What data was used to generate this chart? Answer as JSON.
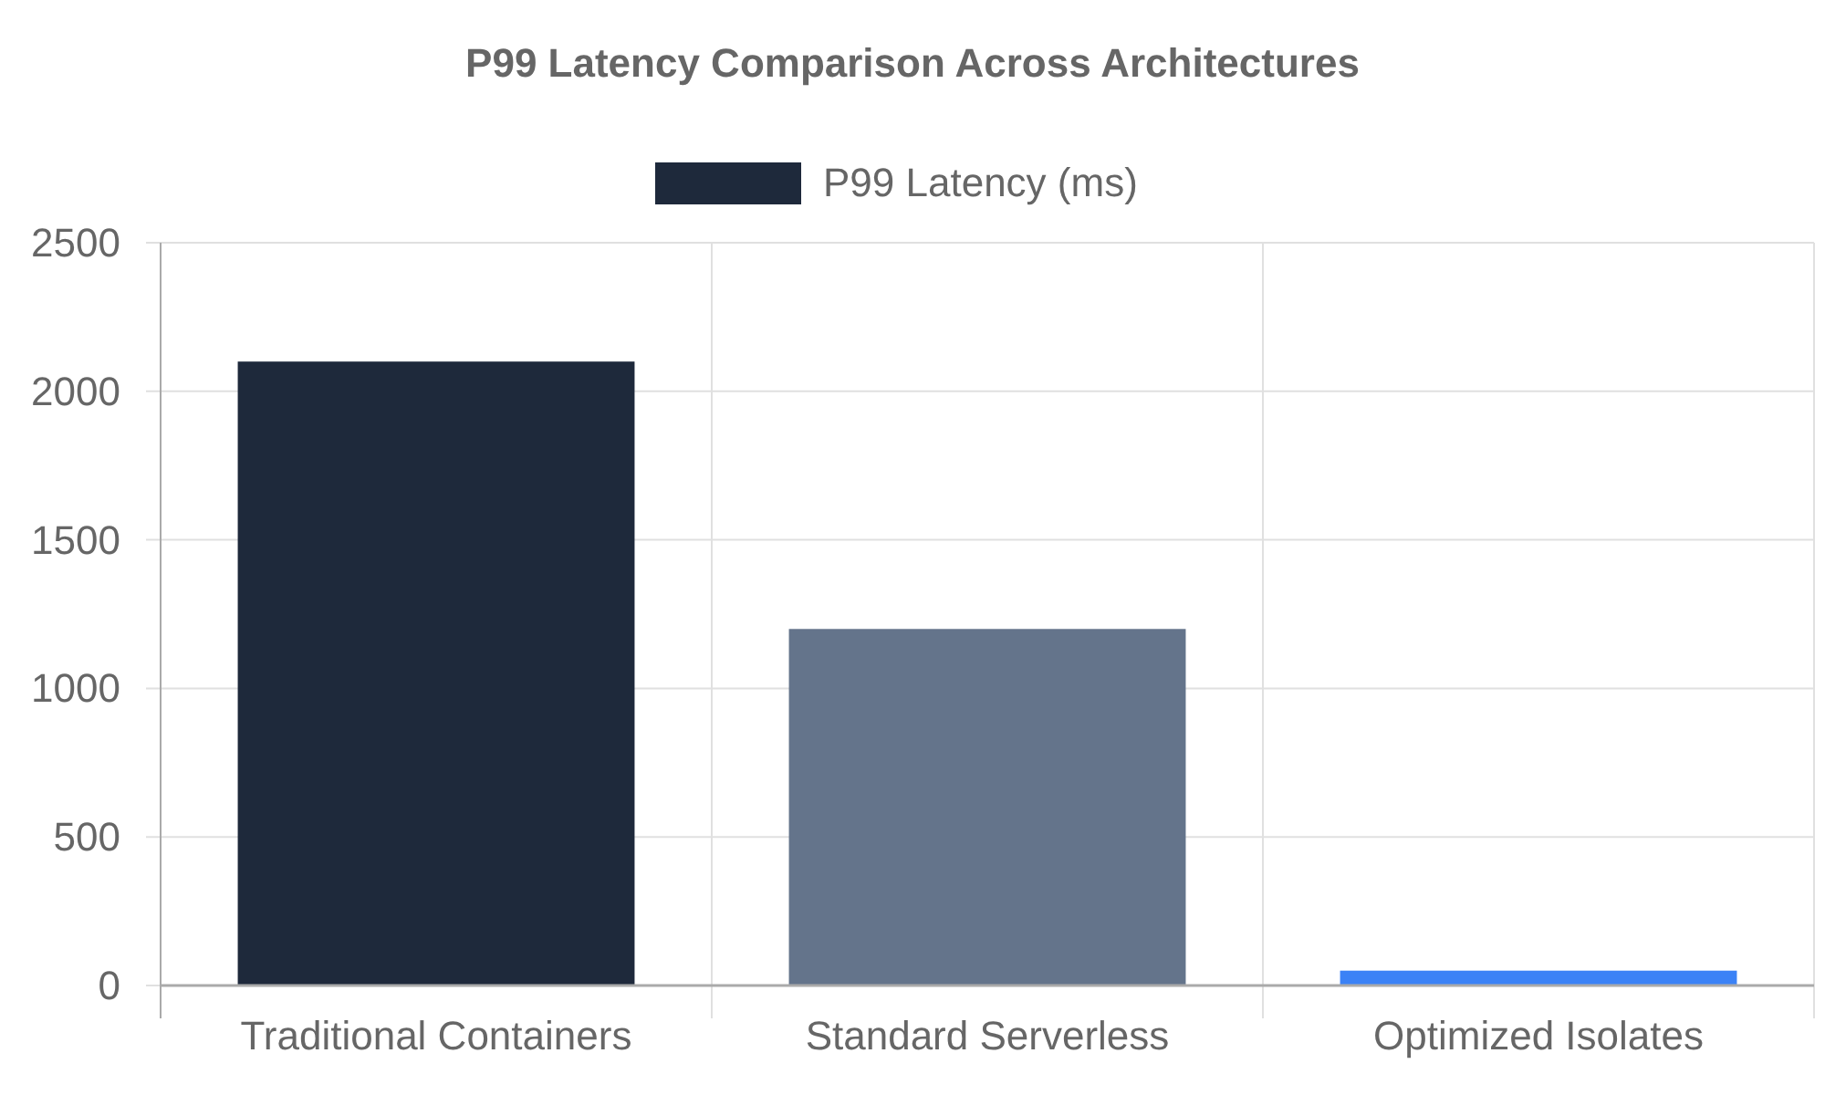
{
  "chart_data": {
    "type": "bar",
    "title": "P99 Latency Comparison Across Architectures",
    "categories": [
      "Traditional Containers",
      "Standard Serverless",
      "Optimized Isolates"
    ],
    "series": [
      {
        "name": "P99 Latency (ms)",
        "color": "#1e293b",
        "colors": [
          "#1e293b",
          "#64748b",
          "#3b82f6"
        ],
        "values": [
          2100,
          1200,
          50
        ]
      }
    ],
    "ylim": [
      0,
      2500
    ],
    "yticks": [
      0,
      500,
      1000,
      1500,
      2000,
      2500
    ],
    "grid": true,
    "legend": "top"
  }
}
